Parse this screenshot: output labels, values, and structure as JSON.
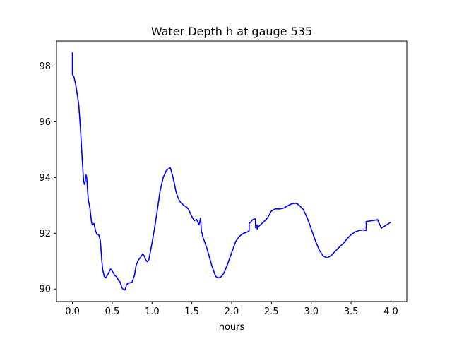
{
  "chart_data": {
    "type": "line",
    "title": "Water Depth h at gauge 535",
    "xlabel": "hours",
    "ylabel": "",
    "xlim": [
      -0.2,
      4.2
    ],
    "ylim": [
      89.55,
      98.9
    ],
    "grid": false,
    "legend": false,
    "x_ticks": [
      0.0,
      0.5,
      1.0,
      1.5,
      2.0,
      2.5,
      3.0,
      3.5,
      4.0
    ],
    "x_tick_labels": [
      "0.0",
      "0.5",
      "1.0",
      "1.5",
      "2.0",
      "2.5",
      "3.0",
      "3.5",
      "4.0"
    ],
    "y_ticks": [
      90,
      92,
      94,
      96,
      98
    ],
    "y_tick_labels": [
      "90",
      "92",
      "94",
      "96",
      "98"
    ],
    "series": [
      {
        "color": "#0000ff",
        "x": [
          0.0,
          0.0,
          0.0,
          0.0,
          0.02,
          0.04,
          0.06,
          0.08,
          0.1,
          0.12,
          0.14,
          0.15,
          0.16,
          0.17,
          0.18,
          0.19,
          0.2,
          0.22,
          0.24,
          0.25,
          0.27,
          0.29,
          0.31,
          0.33,
          0.35,
          0.36,
          0.37,
          0.38,
          0.4,
          0.42,
          0.45,
          0.48,
          0.5,
          0.53,
          0.56,
          0.58,
          0.6,
          0.62,
          0.64,
          0.66,
          0.68,
          0.7,
          0.72,
          0.75,
          0.78,
          0.8,
          0.83,
          0.86,
          0.88,
          0.9,
          0.92,
          0.94,
          0.96,
          0.98,
          1.0,
          1.03,
          1.06,
          1.1,
          1.14,
          1.18,
          1.2,
          1.23,
          1.26,
          1.28,
          1.3,
          1.33,
          1.36,
          1.4,
          1.43,
          1.46,
          1.5,
          1.53,
          1.56,
          1.59,
          1.61,
          1.62,
          1.63,
          1.635,
          1.64,
          1.66,
          1.69,
          1.72,
          1.75,
          1.78,
          1.8,
          1.83,
          1.86,
          1.9,
          1.95,
          2.0,
          2.05,
          2.1,
          2.15,
          2.2,
          2.22,
          2.22,
          2.27,
          2.3,
          2.3,
          2.32,
          2.32,
          2.34,
          2.36,
          2.38,
          2.4,
          2.45,
          2.5,
          2.55,
          2.6,
          2.65,
          2.7,
          2.75,
          2.8,
          2.83,
          2.85,
          2.9,
          2.95,
          3.0,
          3.05,
          3.1,
          3.15,
          3.2,
          3.25,
          3.3,
          3.35,
          3.4,
          3.45,
          3.5,
          3.55,
          3.6,
          3.65,
          3.69,
          3.69,
          3.75,
          3.83,
          3.83,
          3.88,
          3.92,
          3.96,
          4.0
        ],
        "y": [
          97.75,
          98.48,
          98.0,
          97.7,
          97.6,
          97.35,
          97.0,
          96.6,
          95.8,
          94.8,
          93.9,
          93.75,
          93.85,
          94.1,
          94.0,
          93.55,
          93.2,
          92.9,
          92.4,
          92.3,
          92.35,
          92.1,
          91.95,
          91.95,
          91.75,
          91.4,
          91.0,
          90.7,
          90.45,
          90.4,
          90.55,
          90.72,
          90.65,
          90.5,
          90.42,
          90.3,
          90.25,
          90.05,
          89.98,
          89.97,
          90.15,
          90.22,
          90.22,
          90.25,
          90.5,
          90.85,
          91.05,
          91.15,
          91.25,
          91.2,
          91.05,
          90.98,
          91.05,
          91.35,
          91.65,
          92.15,
          92.7,
          93.5,
          94.0,
          94.25,
          94.3,
          94.35,
          94.05,
          93.8,
          93.5,
          93.25,
          93.1,
          93.0,
          92.95,
          92.85,
          92.6,
          92.45,
          92.5,
          92.3,
          92.55,
          92.05,
          92.0,
          91.9,
          91.85,
          91.7,
          91.45,
          91.15,
          90.85,
          90.6,
          90.45,
          90.4,
          90.42,
          90.55,
          90.9,
          91.3,
          91.7,
          91.9,
          92.0,
          92.05,
          92.1,
          92.35,
          92.5,
          92.52,
          92.2,
          92.3,
          92.15,
          92.25,
          92.3,
          92.35,
          92.4,
          92.55,
          92.8,
          92.88,
          92.87,
          92.9,
          92.98,
          93.05,
          93.08,
          93.05,
          93.0,
          92.85,
          92.55,
          92.15,
          91.75,
          91.4,
          91.18,
          91.12,
          91.2,
          91.35,
          91.5,
          91.63,
          91.8,
          91.95,
          92.05,
          92.1,
          92.12,
          92.1,
          92.42,
          92.45,
          92.48,
          92.5,
          92.18,
          92.25,
          92.33,
          92.4
        ]
      }
    ]
  }
}
